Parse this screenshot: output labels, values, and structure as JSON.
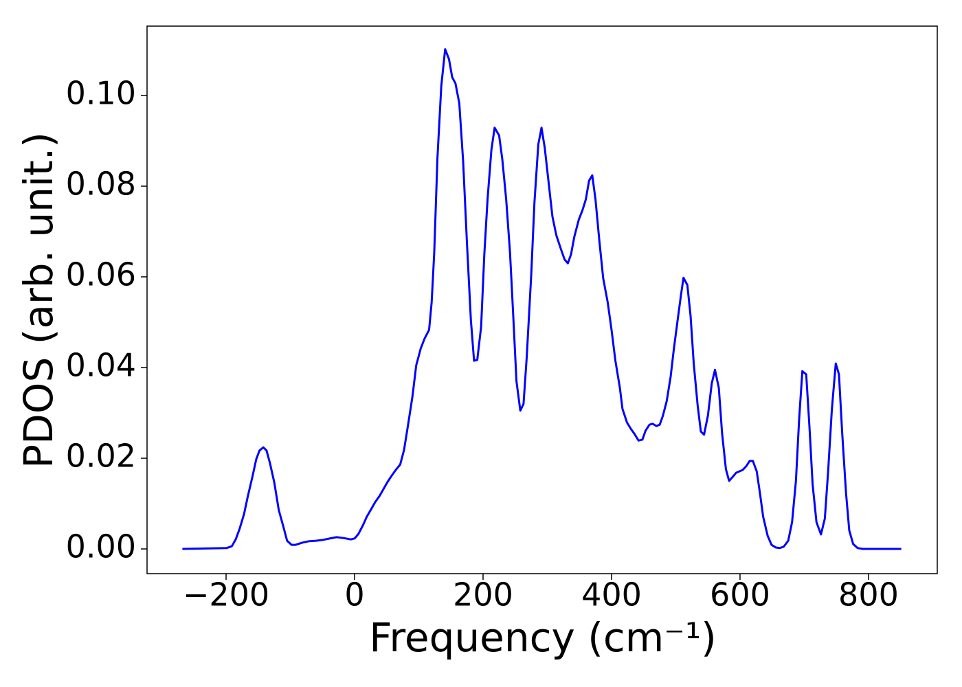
{
  "chart_data": {
    "type": "line",
    "x_label": "Frequency (cm⁻¹)",
    "y_label": "PDOS (arb. unit.)",
    "series": [
      {
        "name": "PDOS",
        "color": "#0000ff",
        "x": [
          -268,
          -199,
          -191,
          -185,
          -179,
          -172,
          -166,
          -159,
          -153,
          -148,
          -142,
          -137,
          -132,
          -125,
          -118,
          -111,
          -105,
          -98,
          -92,
          -81,
          -71,
          -60,
          -49,
          -39,
          -28,
          -17,
          -6,
          0,
          6,
          13,
          19,
          26,
          32,
          39,
          45,
          51,
          58,
          64,
          71,
          77,
          83,
          90,
          96,
          103,
          109,
          116,
          120,
          124,
          129,
          135,
          141,
          147,
          152,
          157,
          163,
          169,
          175,
          181,
          186,
          191,
          197,
          202,
          207,
          213,
          218,
          225,
          230,
          236,
          242,
          247,
          252,
          258,
          263,
          268,
          275,
          280,
          286,
          291,
          296,
          302,
          308,
          314,
          321,
          327,
          332,
          337,
          342,
          349,
          355,
          360,
          365,
          370,
          375,
          381,
          387,
          394,
          400,
          406,
          413,
          417,
          424,
          430,
          436,
          442,
          448,
          453,
          459,
          464,
          470,
          475,
          480,
          486,
          492,
          497,
          503,
          508,
          512,
          518,
          523,
          528,
          534,
          539,
          544,
          550,
          556,
          561,
          567,
          572,
          578,
          583,
          588,
          594,
          599,
          604,
          610,
          615,
          620,
          626,
          631,
          636,
          643,
          649,
          656,
          662,
          668,
          675,
          681,
          687,
          692,
          697,
          703,
          708,
          713,
          719,
          726,
          732,
          737,
          743,
          749,
          754,
          759,
          765,
          770,
          776,
          783,
          791,
          851
        ],
        "values": [
          0,
          0.0002,
          0.0006,
          0.0021,
          0.0044,
          0.0077,
          0.0117,
          0.0159,
          0.0198,
          0.0217,
          0.0224,
          0.0217,
          0.0191,
          0.0147,
          0.0086,
          0.005,
          0.0018,
          0.0009,
          0.0009,
          0.0014,
          0.0017,
          0.0018,
          0.002,
          0.0023,
          0.0026,
          0.0024,
          0.0021,
          0.0023,
          0.0033,
          0.0052,
          0.0071,
          0.0088,
          0.0103,
          0.0117,
          0.0132,
          0.0147,
          0.0162,
          0.0174,
          0.0186,
          0.0218,
          0.0271,
          0.0335,
          0.0405,
          0.0442,
          0.0464,
          0.0483,
          0.0544,
          0.0653,
          0.0862,
          0.1021,
          0.1102,
          0.108,
          0.104,
          0.1027,
          0.0983,
          0.0855,
          0.0673,
          0.0506,
          0.0415,
          0.0417,
          0.049,
          0.065,
          0.0771,
          0.088,
          0.0929,
          0.0912,
          0.0859,
          0.0771,
          0.0653,
          0.0514,
          0.037,
          0.0305,
          0.032,
          0.0423,
          0.0605,
          0.0764,
          0.0892,
          0.0929,
          0.0885,
          0.0809,
          0.0733,
          0.0692,
          0.0662,
          0.0638,
          0.063,
          0.065,
          0.0688,
          0.0726,
          0.0748,
          0.0771,
          0.0812,
          0.0824,
          0.0771,
          0.068,
          0.0597,
          0.0544,
          0.0483,
          0.0415,
          0.0355,
          0.0309,
          0.0279,
          0.0265,
          0.0253,
          0.0239,
          0.0241,
          0.0261,
          0.0274,
          0.0276,
          0.0271,
          0.0274,
          0.0294,
          0.0327,
          0.038,
          0.0441,
          0.0506,
          0.0559,
          0.0598,
          0.0582,
          0.0514,
          0.0408,
          0.0317,
          0.0259,
          0.0252,
          0.0294,
          0.0365,
          0.0395,
          0.0355,
          0.0256,
          0.0176,
          0.015,
          0.0158,
          0.0168,
          0.0171,
          0.0174,
          0.0183,
          0.0194,
          0.0194,
          0.0171,
          0.0123,
          0.0071,
          0.0029,
          0.0009,
          0.0003,
          0.0002,
          0.0005,
          0.0018,
          0.0059,
          0.015,
          0.0286,
          0.0392,
          0.0385,
          0.0271,
          0.0142,
          0.0059,
          0.0032,
          0.0067,
          0.0168,
          0.0309,
          0.0409,
          0.0385,
          0.0256,
          0.0123,
          0.0041,
          0.0011,
          0.0002,
          0,
          0
        ]
      }
    ],
    "xlim": [
      -323,
      907
    ],
    "ylim": [
      -0.00545,
      0.1153
    ],
    "xticks": [
      {
        "value": -200,
        "label": "−200"
      },
      0,
      200,
      400,
      600,
      800
    ],
    "yticks": [
      {
        "value": 0,
        "label": "0.00"
      },
      0.02,
      0.04,
      0.06,
      0.08,
      {
        "value": 0.1,
        "label": "0.10"
      }
    ]
  }
}
